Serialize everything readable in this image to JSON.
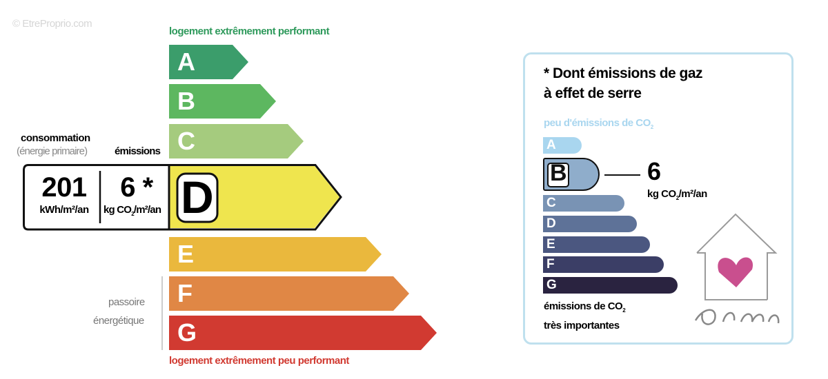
{
  "watermark": "© EtreProprio.com",
  "energy": {
    "top_caption": "logement extrêmement performant",
    "bottom_caption": "logement extrêmement peu performant",
    "classes": [
      {
        "letter": "A",
        "color": "#3b9d6b"
      },
      {
        "letter": "B",
        "color": "#5db760"
      },
      {
        "letter": "C",
        "color": "#a5cb7e"
      },
      {
        "letter": "D",
        "color": "#efe54e"
      },
      {
        "letter": "E",
        "color": "#eab83d"
      },
      {
        "letter": "F",
        "color": "#e08745"
      },
      {
        "letter": "G",
        "color": "#d13a31"
      }
    ],
    "current_class": "D",
    "consumption_label": "consommation",
    "consumption_sublabel": "(énergie primaire)",
    "emissions_label": "émissions",
    "consumption_value": "201",
    "consumption_unit": "kWh/m²/an",
    "emissions_value": "6 *",
    "emissions_unit_pre": "kg CO",
    "emissions_unit_sub": "2",
    "emissions_unit_post": "/m²/an",
    "passoire_line1": "passoire",
    "passoire_line2": "énergétique"
  },
  "ges": {
    "title_line1": "* Dont émissions de gaz",
    "title_line2": "à effet de serre",
    "top_caption_pre": "peu d'émissions de CO",
    "top_caption_sub": "2",
    "bottom_caption_line1_pre": "émissions de CO",
    "bottom_caption_sub": "2",
    "bottom_caption_line2": "très importantes",
    "classes": [
      {
        "letter": "A",
        "color": "#a9d6ef"
      },
      {
        "letter": "B",
        "color": "#8fadcb"
      },
      {
        "letter": "C",
        "color": "#7993b4"
      },
      {
        "letter": "D",
        "color": "#5e7298"
      },
      {
        "letter": "E",
        "color": "#4b5780"
      },
      {
        "letter": "F",
        "color": "#3b3e66"
      },
      {
        "letter": "G",
        "color": "#2a2340"
      }
    ],
    "current_class": "B",
    "value": "6",
    "unit_pre": "kg CO",
    "unit_sub": "2",
    "unit_post": "/m²/an"
  },
  "logo": {
    "text": "Ô cœur de l'immo",
    "heart_color": "#c0307a"
  }
}
